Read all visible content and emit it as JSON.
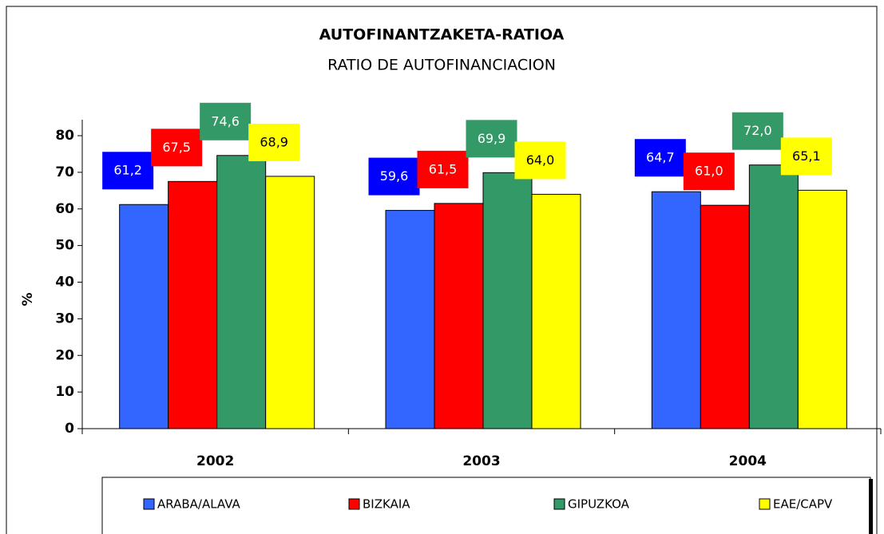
{
  "chart_data": {
    "type": "bar",
    "title": "AUTOFINANTZAKETA-RATIOA",
    "subtitle": "RATIO DE AUTOFINANCIACION",
    "y_label": "%",
    "categories": [
      "2002",
      "2003",
      "2004"
    ],
    "series": [
      {
        "name": "ARABA/ALAVA",
        "color": "#3366ff",
        "label_color": "#0000ff",
        "values": [
          61.2,
          59.6,
          64.7
        ],
        "value_labels": [
          "61,2",
          "59,6",
          "64,7"
        ]
      },
      {
        "name": "BIZKAIA",
        "color": "#ff0000",
        "label_color": "#ff0000",
        "values": [
          67.5,
          61.5,
          61.0
        ],
        "value_labels": [
          "67,5",
          "61,5",
          "61,0"
        ]
      },
      {
        "name": "GIPUZKOA",
        "color": "#339966",
        "label_color": "#339966",
        "values": [
          74.6,
          69.9,
          72.0
        ],
        "value_labels": [
          "74,6",
          "69,9",
          "72,0"
        ]
      },
      {
        "name": "EAE/CAPV",
        "color": "#ffff00",
        "label_color": "#ffff00",
        "values": [
          68.9,
          64.0,
          65.1
        ],
        "value_labels": [
          "68,9",
          "64,0",
          "65,1"
        ]
      }
    ],
    "ylim": [
      0,
      80
    ],
    "yticks": [
      0,
      10,
      20,
      30,
      40,
      50,
      60,
      70,
      80
    ],
    "grid": false
  }
}
